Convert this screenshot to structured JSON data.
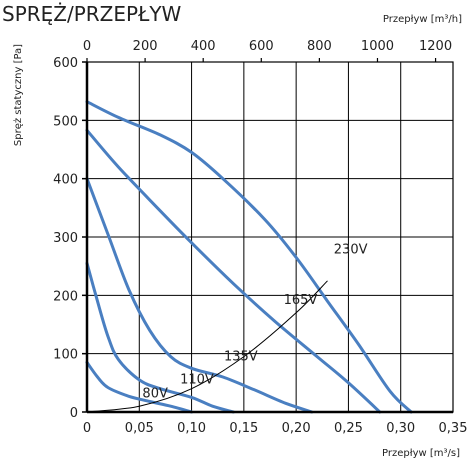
{
  "title": "SPRĘŻ/PRZEPŁYW",
  "chart_data": {
    "type": "line",
    "xlabel": "Przepływ [m³/s]",
    "x2label": "Przepływ [m³/h]",
    "ylabel": "Spręż statyczny [Pa]",
    "xlim": [
      0,
      0.35
    ],
    "x2lim": [
      0,
      1260
    ],
    "ylim": [
      0,
      600
    ],
    "xticks": [
      "0",
      "0,05",
      "0,10",
      "0,15",
      "0,20",
      "0,25",
      "0,30",
      "0,35"
    ],
    "x2ticks": [
      "0",
      "200",
      "400",
      "600",
      "800",
      "1000",
      "1200"
    ],
    "yticks": [
      "0",
      "100",
      "200",
      "300",
      "400",
      "500",
      "600"
    ],
    "grid": true,
    "colors": {
      "curve": "#4a7fc1",
      "system": "#000000",
      "grid": "#000000"
    },
    "series": [
      {
        "name": "230V",
        "x": [
          0,
          0.03,
          0.07,
          0.1,
          0.13,
          0.17,
          0.2,
          0.23,
          0.26,
          0.29,
          0.31
        ],
        "y": [
          532,
          505,
          475,
          445,
          400,
          330,
          265,
          190,
          115,
          35,
          0
        ]
      },
      {
        "name": "165V",
        "x": [
          0,
          0.03,
          0.07,
          0.1,
          0.14,
          0.18,
          0.22,
          0.25,
          0.28
        ],
        "y": [
          483,
          420,
          345,
          290,
          220,
          155,
          95,
          50,
          0
        ]
      },
      {
        "name": "135V",
        "x": [
          0,
          0.02,
          0.04,
          0.06,
          0.08,
          0.1,
          0.13,
          0.16,
          0.19,
          0.215
        ],
        "y": [
          400,
          305,
          210,
          140,
          95,
          75,
          60,
          38,
          15,
          0
        ]
      },
      {
        "name": "110V",
        "x": [
          0,
          0.01,
          0.02,
          0.03,
          0.05,
          0.07,
          0.1,
          0.12,
          0.14
        ],
        "y": [
          255,
          190,
          130,
          90,
          55,
          40,
          25,
          10,
          0
        ]
      },
      {
        "name": "80V",
        "x": [
          0,
          0.01,
          0.02,
          0.04,
          0.06,
          0.08,
          0.1
        ],
        "y": [
          85,
          60,
          42,
          27,
          18,
          10,
          0
        ]
      }
    ],
    "system_curve": {
      "x": [
        0,
        0.05,
        0.1,
        0.15,
        0.2,
        0.23
      ],
      "y": [
        0,
        10,
        40,
        95,
        170,
        225
      ]
    },
    "annotations": [
      {
        "text": "230V",
        "x": 0.236,
        "y": 272
      },
      {
        "text": "165V",
        "x": 0.188,
        "y": 185
      },
      {
        "text": "135V",
        "x": 0.131,
        "y": 88
      },
      {
        "text": "110V",
        "x": 0.089,
        "y": 49
      },
      {
        "text": "80V",
        "x": 0.053,
        "y": 25
      }
    ]
  }
}
